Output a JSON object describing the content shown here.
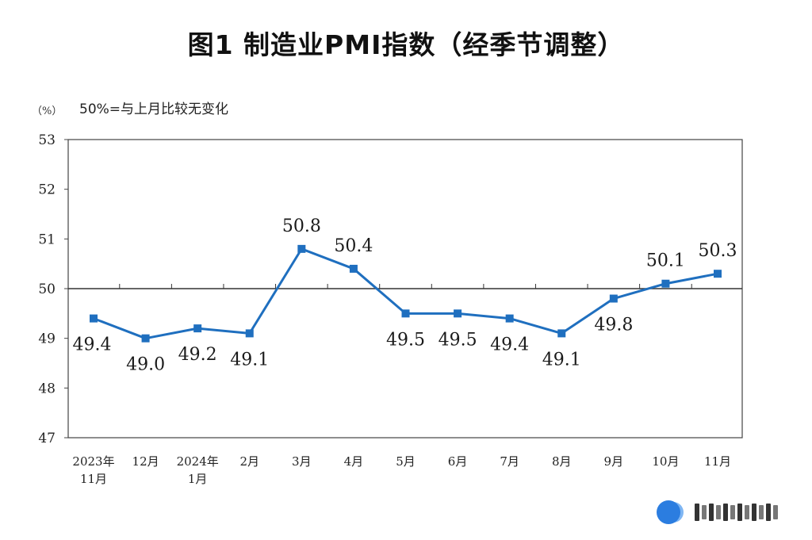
{
  "title": "图1  制造业PMI指数（经季节调整）",
  "unit_label": "（%）",
  "note": "50%=与上月比较无变化",
  "chart_data": {
    "type": "line",
    "categories": [
      [
        "2023年",
        "11月"
      ],
      [
        "12月"
      ],
      [
        "2024年",
        "1月"
      ],
      [
        "2月"
      ],
      [
        "3月"
      ],
      [
        "4月"
      ],
      [
        "5月"
      ],
      [
        "6月"
      ],
      [
        "7月"
      ],
      [
        "8月"
      ],
      [
        "9月"
      ],
      [
        "10月"
      ],
      [
        "11月"
      ]
    ],
    "series": [
      {
        "values": [
          49.4,
          49.0,
          49.2,
          49.1,
          50.8,
          50.4,
          49.5,
          49.5,
          49.4,
          49.1,
          49.8,
          50.1,
          50.3
        ]
      }
    ],
    "data_labels": [
      "49.4",
      "49.0",
      "49.2",
      "49.1",
      "50.8",
      "50.4",
      "49.5",
      "49.5",
      "49.4",
      "49.1",
      "49.8",
      "50.1",
      "50.3"
    ],
    "label_positions": [
      "below",
      "below",
      "below",
      "below",
      "above",
      "above",
      "below",
      "below",
      "below",
      "below",
      "below",
      "above",
      "above"
    ],
    "yticks": [
      "47",
      "48",
      "49",
      "50",
      "51",
      "52",
      "53"
    ],
    "ylim": [
      47,
      53
    ],
    "reference_line": 50,
    "grid": false,
    "line_color": "#1f6fbf",
    "marker": "square"
  }
}
